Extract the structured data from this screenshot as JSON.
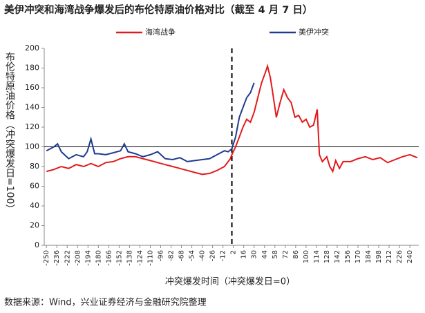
{
  "chart_data": {
    "type": "line",
    "title": "美伊冲突和海湾战争爆发后的布伦特原油价格对比（截至 4 月 7 日）",
    "y_label": "布伦特原油价格（冲突爆发日=100）",
    "x_label": "冲突爆发时间（冲突爆发日=0）",
    "source": "数据来源：Wind，兴业证券经济与金融研究院整理",
    "xlim": [
      -253,
      252
    ],
    "ylim": [
      0,
      200
    ],
    "xticks": [
      -250,
      -236,
      -222,
      -208,
      -194,
      -180,
      -166,
      -152,
      -138,
      -124,
      -110,
      -96,
      -82,
      -68,
      -54,
      -40,
      -26,
      -12,
      2,
      16,
      30,
      44,
      58,
      72,
      86,
      100,
      114,
      128,
      142,
      156,
      170,
      184,
      198,
      212,
      226,
      240
    ],
    "yticks": [
      0,
      20,
      40,
      60,
      80,
      100,
      120,
      140,
      160,
      180,
      200
    ],
    "hline": 100,
    "vline": 0,
    "series": [
      {
        "name": "海湾战争",
        "color": "#e3191c",
        "x": [
          -250,
          -240,
          -230,
          -220,
          -210,
          -200,
          -190,
          -180,
          -170,
          -160,
          -150,
          -140,
          -130,
          -120,
          -110,
          -100,
          -90,
          -80,
          -70,
          -60,
          -50,
          -40,
          -30,
          -20,
          -10,
          -2,
          0,
          5,
          10,
          15,
          20,
          25,
          30,
          35,
          40,
          45,
          48,
          52,
          55,
          60,
          65,
          70,
          75,
          80,
          85,
          90,
          95,
          100,
          105,
          110,
          112,
          115,
          118,
          122,
          128,
          132,
          136,
          140,
          145,
          150,
          160,
          170,
          180,
          190,
          200,
          210,
          220,
          230,
          240,
          250
        ],
        "values": [
          75,
          77,
          80,
          78,
          82,
          80,
          83,
          80,
          84,
          85,
          88,
          90,
          90,
          88,
          86,
          84,
          82,
          80,
          78,
          76,
          74,
          72,
          73,
          76,
          80,
          88,
          92,
          100,
          110,
          120,
          128,
          125,
          135,
          150,
          165,
          175,
          182,
          170,
          155,
          130,
          145,
          158,
          150,
          145,
          130,
          132,
          125,
          128,
          120,
          122,
          128,
          138,
          92,
          85,
          90,
          80,
          75,
          86,
          78,
          85,
          85,
          88,
          90,
          87,
          89,
          84,
          87,
          90,
          92,
          89
        ]
      },
      {
        "name": "美伊冲突",
        "color": "#1f3a8f",
        "x": [
          -250,
          -240,
          -235,
          -230,
          -220,
          -210,
          -200,
          -195,
          -190,
          -185,
          -180,
          -170,
          -160,
          -150,
          -145,
          -140,
          -130,
          -120,
          -110,
          -100,
          -90,
          -80,
          -70,
          -60,
          -50,
          -40,
          -30,
          -20,
          -10,
          -5,
          0,
          5,
          10,
          15,
          20,
          25,
          30
        ],
        "values": [
          96,
          100,
          103,
          95,
          88,
          92,
          90,
          95,
          108,
          93,
          93,
          92,
          94,
          96,
          103,
          95,
          93,
          90,
          92,
          95,
          88,
          87,
          89,
          85,
          86,
          87,
          88,
          92,
          96,
          95,
          98,
          110,
          130,
          140,
          150,
          155,
          165
        ]
      }
    ]
  }
}
